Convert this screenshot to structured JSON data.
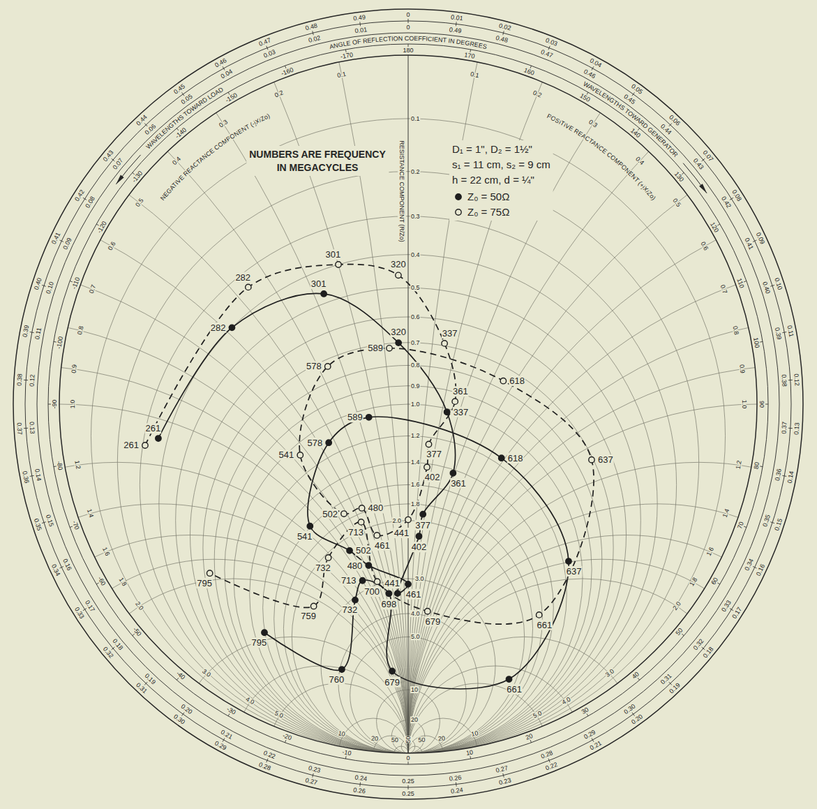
{
  "chart_data": {
    "type": "smith",
    "note": [
      "NUMBERS ARE FREQUENCY",
      "IN MEGACYCLES"
    ],
    "parameters": [
      "D₁ = 1\", D₂ = 1½\"",
      "s₁ = 11 cm, s₂ = 9 cm",
      "h = 22 cm, d = ¼\""
    ],
    "resistance_label": "RESISTANCE COMPONENT (R/Zo)",
    "reactance_positive_label": "POSITIVE REACTANCE COMPONENT (+jX/Zo)",
    "reactance_negative_label": "NEGATIVE REACTANCE COMPONENT (-jX/Zo)",
    "angle_label": "ANGLE OF REFLECTION COEFFICIENT IN DEGREES",
    "wavelength_generator_label": "WAVELENGTHS TOWARD GENERATOR",
    "wavelength_load_label": "WAVELENGTHS TOWARD LOAD",
    "resistance_ticks": [
      0.1,
      0.2,
      0.3,
      0.4,
      0.5,
      0.6,
      0.7,
      0.8,
      0.9,
      {
        "value": 1,
        "label": "1.0"
      },
      1.2,
      1.4,
      1.6,
      1.8,
      {
        "value": 2,
        "label": "2.0"
      },
      {
        "value": 3,
        "label": "3.0"
      },
      {
        "value": 4,
        "label": "4.0"
      },
      {
        "value": 5,
        "label": "5.0"
      },
      10,
      20,
      50
    ],
    "reactance_ticks": [
      0.1,
      0.2,
      0.3,
      0.4,
      0.5,
      0.6,
      0.7,
      0.8,
      0.9,
      {
        "value": 1,
        "label": "1.0"
      },
      1.2,
      1.4,
      1.6,
      1.8,
      {
        "value": 2,
        "label": "2.0"
      },
      {
        "value": 3,
        "label": "3.0"
      },
      {
        "value": 4,
        "label": "4.0"
      },
      {
        "value": 5,
        "label": "5.0"
      },
      10,
      20,
      50
    ],
    "angle_ticks": [
      -170,
      -160,
      -150,
      -140,
      -130,
      -120,
      -110,
      -100,
      -90,
      -80,
      -70,
      -60,
      -50,
      -40,
      -30,
      -20,
      -10,
      0,
      10,
      20,
      30,
      40,
      50,
      60,
      70,
      80,
      90,
      100,
      110,
      120,
      130,
      140,
      150,
      160,
      170,
      180
    ],
    "wavelength_generator_ticks": [
      0,
      0.01,
      0.02,
      0.03,
      0.04,
      0.05,
      0.06,
      0.07,
      0.08,
      0.09,
      {
        "value": 0.1,
        "label": "0.10"
      },
      0.11,
      0.12,
      0.13,
      0.14,
      0.15,
      0.16,
      0.17,
      0.18,
      0.19,
      {
        "value": 0.2,
        "label": "0.20"
      },
      0.21,
      0.22,
      0.23,
      0.24,
      0.25,
      0.26,
      0.27,
      0.28,
      0.29,
      {
        "value": 0.3,
        "label": "0.30"
      },
      0.31,
      0.32,
      0.33,
      0.34,
      0.35,
      0.36,
      0.37,
      0.38,
      0.39,
      {
        "value": 0.4,
        "label": "0.40"
      },
      0.41,
      0.42,
      0.43,
      0.44,
      0.45,
      0.46,
      0.47,
      0.48,
      0.49
    ],
    "wavelength_load_ticks": [
      0,
      0.01,
      0.02,
      0.03,
      0.04,
      0.05,
      0.06,
      0.07,
      0.08,
      0.09,
      {
        "value": 0.1,
        "label": "0.10"
      },
      0.11,
      0.12,
      0.13,
      0.14,
      0.15,
      0.16,
      0.17,
      0.18,
      0.19,
      {
        "value": 0.2,
        "label": "0.20"
      },
      0.21,
      0.22,
      0.23,
      0.24,
      0.25,
      0.26,
      0.27,
      0.28,
      0.29,
      {
        "value": 0.3,
        "label": "0.30"
      },
      0.31,
      0.32,
      0.33,
      0.34,
      0.35,
      0.36,
      0.37,
      0.38,
      0.39,
      {
        "value": 0.4,
        "label": "0.40"
      },
      0.41,
      0.42,
      0.43,
      0.44,
      0.45,
      0.46,
      0.47,
      0.48,
      0.49
    ],
    "grid": true,
    "legend": "upper right",
    "series": [
      {
        "name": "Z₀ = 50Ω",
        "color": "#1e1e1e",
        "marker": "filled",
        "line_style": "solid",
        "frequency": [
          261,
          282,
          301,
          320,
          337,
          361,
          377,
          402,
          441,
          461,
          480,
          502,
          541,
          578,
          589,
          618,
          637,
          661,
          679,
          698,
          713,
          732,
          760,
          795
        ],
        "resistance": [
          0.36,
          0.4,
          0.47,
          0.7,
          1.02,
          1.43,
          1.91,
          2.21,
          3.35,
          3.13,
          2.56,
          2.18,
          1.59,
          1.11,
          1.05,
          1.15,
          1.14,
          2.3,
          7.2,
          3.31,
          2.78,
          3.07,
          4.12,
          1.39
        ],
        "reactance": [
          -1.08,
          -0.58,
          -0.27,
          -0.04,
          0.23,
          0.39,
          0.18,
          0.16,
          -0.29,
          0,
          -0.75,
          -0.92,
          -1.12,
          -0.54,
          -0.24,
          0.68,
          1.79,
          4.5,
          -1.6,
          -0.52,
          -1.0,
          -1.41,
          -4.06,
          -2.85
        ]
      },
      {
        "name": "Z₀ = 75Ω",
        "color": "#1e1e1e",
        "marker": "open",
        "line_style": "dashed",
        "frequency": [
          261,
          282,
          301,
          320,
          337,
          361,
          377,
          402,
          441,
          461,
          480,
          502,
          541,
          578,
          589,
          618,
          637,
          661,
          679,
          700,
          713,
          732,
          759,
          795
        ],
        "resistance": [
          0.31,
          0.34,
          0.4,
          0.46,
          0.69,
          0.95,
          1.25,
          1.43,
          1.99,
          2.14,
          1.75,
          1.72,
          1.07,
          0.73,
          0.72,
          0.76,
          0.71,
          1.66,
          3.83,
          2.94,
          1.9,
          2.06,
          2.36,
          0.75
        ],
        "reactance": [
          -1.12,
          -0.46,
          -0.2,
          -0.03,
          0.15,
          0.26,
          0.15,
          0.16,
          0,
          -0.45,
          -0.52,
          -0.73,
          -0.75,
          -0.36,
          -0.08,
          0.45,
          1.07,
          2.52,
          0.66,
          -0.71,
          -0.59,
          -1.25,
          -2.16,
          -1.93
        ]
      }
    ]
  }
}
